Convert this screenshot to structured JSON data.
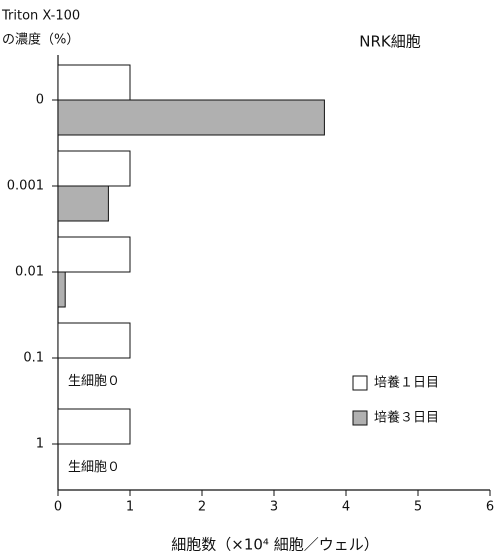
{
  "chart_data": {
    "type": "hbar",
    "title": "NRK細胞",
    "y_label": [
      "Triton X-100",
      "の濃度（%）"
    ],
    "x_label": "細胞数（×10⁴ 細胞／ウェル）",
    "categories": [
      "0",
      "0.001",
      "0.01",
      "0.1",
      "1"
    ],
    "series": [
      {
        "name": "培養１日目",
        "color": "#ffffff",
        "values": [
          1,
          1,
          1,
          1,
          1
        ]
      },
      {
        "name": "培養３日目",
        "color": "#b0b0b0",
        "values": [
          3.7,
          0.7,
          0.1,
          0,
          0
        ]
      }
    ],
    "annotations": [
      "生細胞０",
      "生細胞０"
    ],
    "xlim": [
      0,
      6
    ],
    "xticks": [
      0,
      1,
      2,
      3,
      4,
      5,
      6
    ],
    "grid": false,
    "legend": "lower right"
  }
}
